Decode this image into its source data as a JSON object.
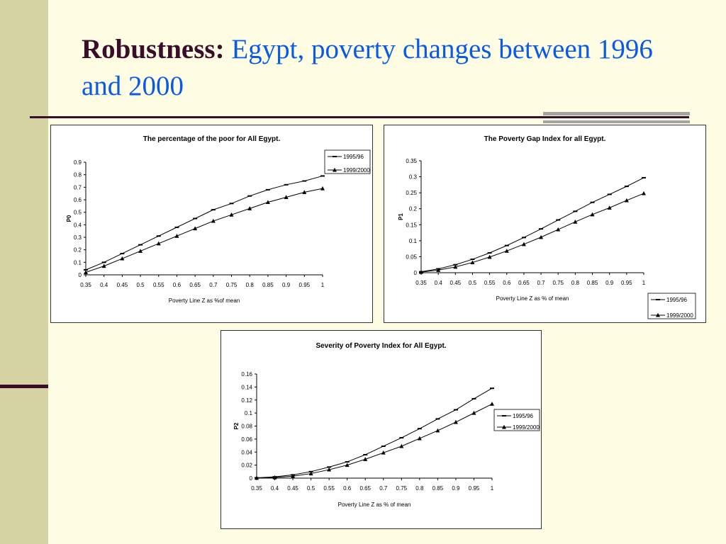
{
  "slide": {
    "title_strong": "Robustness:",
    "title_rest": " Egypt, poverty changes between 1996 and 2000"
  },
  "chart_data": [
    {
      "type": "line",
      "title": "The percentage of the poor  for All Egypt.",
      "xlabel": "Poverty Line Z as %of mean",
      "ylabel": "P0",
      "x": [
        0.35,
        0.4,
        0.45,
        0.5,
        0.55,
        0.6,
        0.65,
        0.7,
        0.75,
        0.8,
        0.85,
        0.9,
        0.95,
        1
      ],
      "xticks": [
        "0.35",
        "0.4",
        "0.45",
        "0.5",
        "0.55",
        "0.6",
        "0.65",
        "0.7",
        "0.75",
        "0.8",
        "0.85",
        "0.9",
        "0.95",
        "1"
      ],
      "ylim": [
        0,
        0.9
      ],
      "yticks": [
        "0",
        "0.1",
        "0.2",
        "0.3",
        "0.4",
        "0.5",
        "0.6",
        "0.7",
        "0.8",
        "0.9"
      ],
      "legend_position": "top-right",
      "series": [
        {
          "name": "1995/96",
          "marker": "dash",
          "values": [
            0.04,
            0.1,
            0.17,
            0.24,
            0.31,
            0.38,
            0.45,
            0.52,
            0.57,
            0.63,
            0.68,
            0.72,
            0.75,
            0.79
          ]
        },
        {
          "name": "1999/2000",
          "marker": "triangle",
          "values": [
            0.02,
            0.07,
            0.13,
            0.19,
            0.25,
            0.31,
            0.37,
            0.43,
            0.48,
            0.53,
            0.58,
            0.62,
            0.66,
            0.69
          ]
        }
      ]
    },
    {
      "type": "line",
      "title": "The Poverty Gap Index for all Egypt.",
      "xlabel": "Poverty Line Z as % of mean",
      "ylabel": "P1",
      "x": [
        0.35,
        0.4,
        0.45,
        0.5,
        0.55,
        0.6,
        0.65,
        0.7,
        0.75,
        0.8,
        0.85,
        0.9,
        0.95,
        1
      ],
      "xticks": [
        "0.35",
        "0.4",
        "0.45",
        "0.5",
        "0.55",
        "0.6",
        "0.65",
        "0.7",
        "0.75",
        "0.8",
        "0.85",
        "0.9",
        "0.95",
        "1"
      ],
      "ylim": [
        0,
        0.35
      ],
      "yticks": [
        "0",
        "0.05",
        "0.1",
        "0.15",
        "0.2",
        "0.25",
        "0.3",
        "0.35"
      ],
      "legend_position": "bottom-right",
      "series": [
        {
          "name": "1995/96",
          "marker": "dash",
          "values": [
            0.003,
            0.012,
            0.025,
            0.042,
            0.062,
            0.085,
            0.11,
            0.137,
            0.165,
            0.192,
            0.22,
            0.245,
            0.27,
            0.297
          ]
        },
        {
          "name": "1999/2000",
          "marker": "triangle",
          "values": [
            0.002,
            0.008,
            0.018,
            0.032,
            0.049,
            0.068,
            0.089,
            0.111,
            0.135,
            0.159,
            0.182,
            0.203,
            0.226,
            0.248
          ]
        }
      ]
    },
    {
      "type": "line",
      "title": "Severity of Poverty Index for All Egypt.",
      "xlabel": "Poverty Line Z as % of mean",
      "ylabel": "P2",
      "x": [
        0.35,
        0.4,
        0.45,
        0.5,
        0.55,
        0.6,
        0.65,
        0.7,
        0.75,
        0.8,
        0.85,
        0.9,
        0.95,
        1
      ],
      "xticks": [
        "0.35",
        "0.4",
        "0.45",
        "0.5",
        "0.55",
        "0.6",
        "0.65",
        "0.7",
        "0.75",
        "0.8",
        "0.85",
        "0.9",
        "0.95",
        "1"
      ],
      "ylim": [
        0,
        0.16
      ],
      "yticks": [
        "0",
        "0.02",
        "0.04",
        "0.06",
        "0.08",
        "0.1",
        "0.12",
        "0.14",
        "0.16"
      ],
      "legend_position": "right",
      "series": [
        {
          "name": "1995/96",
          "marker": "dash",
          "values": [
            0.0005,
            0.002,
            0.005,
            0.01,
            0.017,
            0.025,
            0.036,
            0.049,
            0.062,
            0.076,
            0.091,
            0.105,
            0.122,
            0.138
          ]
        },
        {
          "name": "1999/2000",
          "marker": "triangle",
          "values": [
            0.0003,
            0.001,
            0.003,
            0.007,
            0.013,
            0.02,
            0.029,
            0.039,
            0.049,
            0.061,
            0.073,
            0.086,
            0.1,
            0.114
          ]
        }
      ]
    }
  ]
}
